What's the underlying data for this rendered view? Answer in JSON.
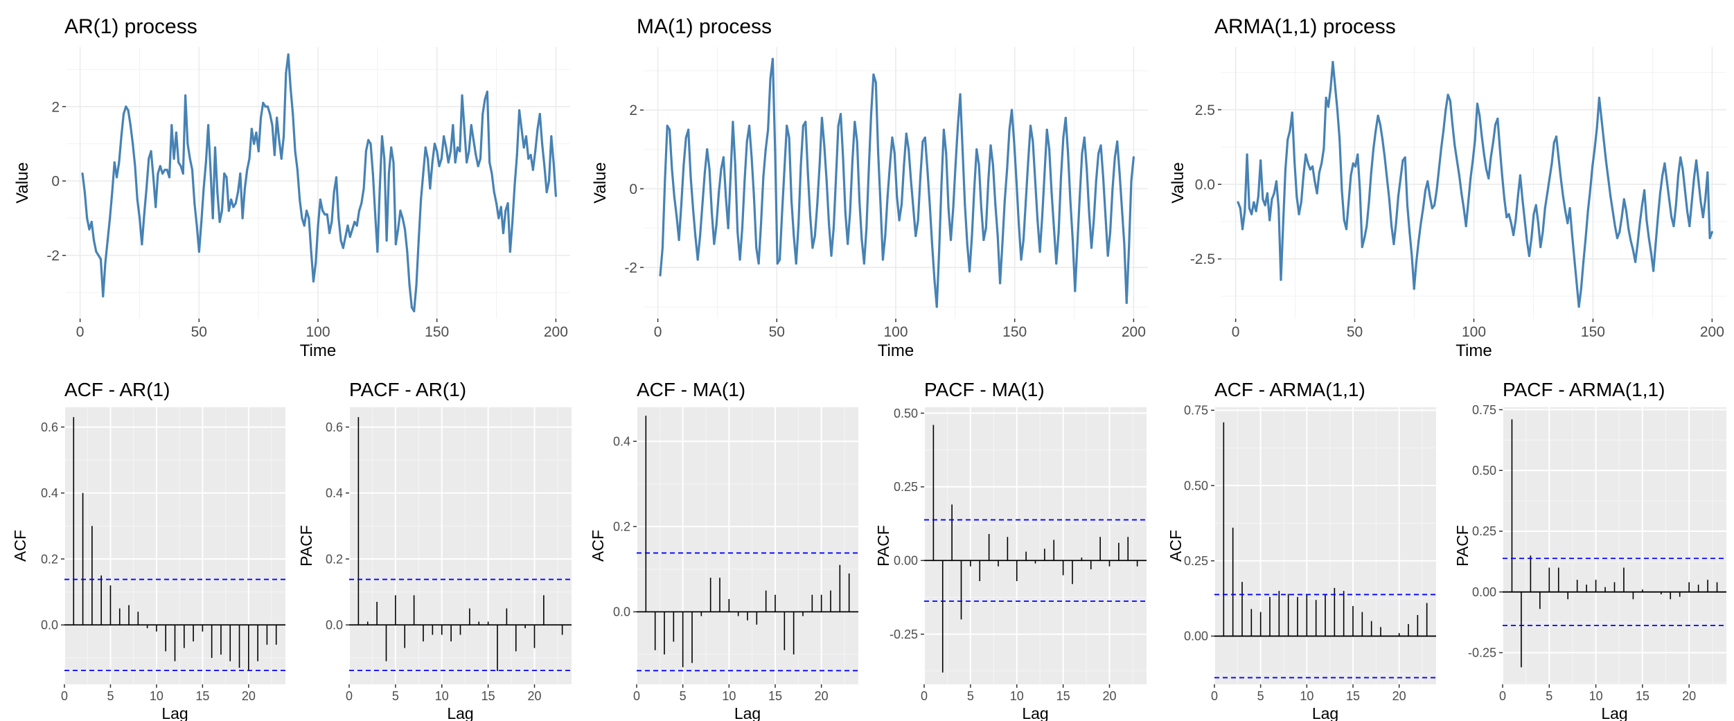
{
  "chart_data": [
    {
      "type": "line",
      "title": "AR(1) process",
      "xlabel": "Time",
      "ylabel": "Value",
      "color": "#4682B4",
      "xlim": [
        -6,
        206
      ],
      "ylim": [
        -3.7,
        3.6
      ],
      "xticks": [
        0,
        50,
        100,
        150,
        200
      ],
      "yticks": [
        -2,
        0,
        2
      ],
      "ytick_labels": [
        "-2",
        "0",
        "2"
      ],
      "grid": true,
      "values": [
        0.2,
        -0.3,
        -1.0,
        -1.3,
        -1.1,
        -1.6,
        -1.9,
        -2.0,
        -2.1,
        -3.1,
        -2.2,
        -1.6,
        -1.0,
        -0.3,
        0.5,
        0.1,
        0.5,
        1.2,
        1.8,
        2.0,
        1.9,
        1.5,
        1.0,
        0.4,
        -0.5,
        -1.0,
        -1.7,
        -0.9,
        -0.2,
        0.6,
        0.8,
        0.1,
        -0.7,
        0.2,
        0.4,
        0.2,
        0.3,
        0.3,
        0.1,
        1.5,
        0.6,
        1.3,
        0.5,
        0.4,
        0.2,
        2.3,
        1.0,
        0.6,
        0.3,
        -0.6,
        -1.2,
        -1.9,
        -1.1,
        -0.2,
        0.5,
        1.5,
        0.3,
        -1.0,
        0.9,
        -0.3,
        -1.1,
        -0.8,
        0.2,
        0.1,
        -0.8,
        -0.5,
        -0.7,
        -0.6,
        -0.3,
        0.2,
        -1.0,
        -0.2,
        0.3,
        0.6,
        1.4,
        1.0,
        1.3,
        0.8,
        1.7,
        2.1,
        2.0,
        2.0,
        1.8,
        1.5,
        0.7,
        1.7,
        1.1,
        0.6,
        1.2,
        2.9,
        3.4,
        2.5,
        1.8,
        0.8,
        0.3,
        -0.5,
        -1.0,
        -1.2,
        -0.8,
        -1.0,
        -1.9,
        -2.7,
        -2.2,
        -1.2,
        -0.5,
        -0.8,
        -0.9,
        -0.9,
        -1.4,
        -1.1,
        -0.3,
        0.1,
        -1.0,
        -1.6,
        -1.8,
        -1.5,
        -1.2,
        -1.5,
        -1.3,
        -1.1,
        -1.2,
        -0.8,
        -0.6,
        -0.2,
        0.8,
        1.1,
        1.0,
        0.2,
        -0.9,
        -1.9,
        -0.2,
        1.2,
        0.6,
        -1.6,
        0.2,
        0.9,
        0.5,
        -1.7,
        -1.3,
        -0.8,
        -1.0,
        -1.3,
        -1.9,
        -2.8,
        -3.4,
        -3.5,
        -2.8,
        -1.6,
        -0.5,
        0.2,
        0.9,
        0.6,
        -0.2,
        0.5,
        1.0,
        0.8,
        0.4,
        0.6,
        1.2,
        0.9,
        0.5,
        0.8,
        1.5,
        0.5,
        0.9,
        0.8,
        2.3,
        1.4,
        0.5,
        0.8,
        1.5,
        1.1,
        0.7,
        0.4,
        0.6,
        1.8,
        2.2,
        2.4,
        0.5,
        0.2,
        -0.3,
        -0.6,
        -1.0,
        -0.7,
        -1.4,
        -0.8,
        -0.6,
        -1.9,
        -1.1,
        -0.1,
        0.7,
        1.9,
        1.4,
        0.9,
        1.2,
        0.6,
        0.7,
        0.3,
        0.8,
        1.4,
        1.8,
        1.0,
        0.4,
        -0.3,
        0.0,
        1.2,
        0.5,
        -0.4
      ]
    },
    {
      "type": "line",
      "title": "MA(1) process",
      "xlabel": "Time",
      "ylabel": "Value",
      "color": "#4682B4",
      "xlim": [
        -6,
        206
      ],
      "ylim": [
        -3.3,
        3.6
      ],
      "xticks": [
        0,
        50,
        100,
        150,
        200
      ],
      "yticks": [
        -2,
        0,
        2
      ],
      "ytick_labels": [
        "-2",
        "0",
        "2"
      ],
      "grid": true,
      "values": [
        -2.2,
        -1.5,
        0.2,
        1.6,
        1.5,
        0.5,
        -0.2,
        -0.7,
        -1.3,
        -0.4,
        0.6,
        1.3,
        1.5,
        0.3,
        -0.5,
        -1.2,
        -1.8,
        -1.2,
        -0.4,
        0.4,
        1.0,
        0.5,
        -0.6,
        -1.4,
        -0.9,
        -0.1,
        0.5,
        0.8,
        -0.2,
        -1.0,
        0.3,
        1.7,
        0.6,
        -1.1,
        -1.8,
        -1.0,
        0.2,
        1.2,
        1.6,
        0.8,
        -0.2,
        -1.5,
        -1.9,
        -0.9,
        0.3,
        1.0,
        1.5,
        2.8,
        3.3,
        1.0,
        -1.9,
        -1.8,
        -0.6,
        0.5,
        1.6,
        1.3,
        -0.3,
        -1.2,
        -1.9,
        -0.9,
        0.6,
        1.6,
        1.7,
        0.4,
        -0.7,
        -1.5,
        -1.2,
        -0.4,
        0.6,
        1.8,
        1.1,
        0.2,
        -0.9,
        -1.7,
        -1.0,
        0.3,
        1.6,
        1.9,
        0.8,
        -0.6,
        -1.4,
        -0.6,
        0.7,
        1.7,
        1.2,
        -0.3,
        -1.3,
        -1.9,
        -1.0,
        0.5,
        1.9,
        2.9,
        2.7,
        0.9,
        -0.4,
        -1.8,
        -1.2,
        -0.2,
        0.6,
        1.3,
        0.9,
        -0.2,
        -0.8,
        -0.4,
        0.6,
        1.4,
        1.0,
        0.2,
        -0.5,
        -1.2,
        -0.8,
        0.3,
        1.2,
        1.3,
        0.5,
        -0.4,
        -1.4,
        -2.3,
        -3.0,
        -1.6,
        0.1,
        1.5,
        0.9,
        -0.5,
        -1.3,
        -0.5,
        0.6,
        1.6,
        2.4,
        1.0,
        -0.4,
        -1.4,
        -2.1,
        -1.2,
        0.0,
        1.0,
        0.6,
        -0.5,
        -1.3,
        -1.0,
        0.2,
        1.1,
        0.6,
        -0.4,
        -1.2,
        -2.4,
        -1.4,
        -0.3,
        0.5,
        1.5,
        2.0,
        1.2,
        0.2,
        -0.9,
        -1.8,
        -1.3,
        -0.3,
        0.7,
        1.6,
        1.2,
        0.2,
        -0.8,
        -1.6,
        -0.7,
        0.4,
        1.5,
        1.0,
        -0.1,
        -1.0,
        -1.9,
        -1.1,
        0.3,
        1.3,
        1.8,
        0.9,
        -0.3,
        -1.3,
        -2.6,
        -1.4,
        -0.2,
        0.9,
        1.3,
        0.5,
        -0.6,
        -1.5,
        -0.8,
        0.2,
        0.9,
        1.1,
        0.3,
        -0.7,
        -1.7,
        -1.1,
        0.0,
        0.8,
        1.2,
        0.4,
        -0.5,
        -1.4,
        -2.9,
        -1.5,
        0.2,
        0.8
      ]
    },
    {
      "type": "line",
      "title": "ARMA(1,1) process",
      "xlabel": "Time",
      "ylabel": "Value",
      "color": "#4682B4",
      "xlim": [
        -6,
        206
      ],
      "ylim": [
        -4.5,
        4.6
      ],
      "xticks": [
        0,
        50,
        100,
        150,
        200
      ],
      "yticks": [
        -2.5,
        0.0,
        2.5
      ],
      "ytick_labels": [
        "-2.5",
        "0.0",
        "2.5"
      ],
      "grid": true,
      "values": [
        -0.6,
        -0.8,
        -1.5,
        -0.9,
        1.0,
        -0.8,
        -1.0,
        -0.6,
        -0.9,
        -0.4,
        0.8,
        -0.5,
        -0.7,
        -0.3,
        -1.2,
        -0.5,
        -0.3,
        0.1,
        -0.8,
        -3.2,
        -1.3,
        0.5,
        1.5,
        1.8,
        2.4,
        0.8,
        -0.4,
        -1.0,
        -0.6,
        0.3,
        1.0,
        0.7,
        0.5,
        0.6,
        0.1,
        -0.3,
        0.4,
        0.7,
        1.2,
        2.9,
        2.6,
        3.2,
        4.1,
        3.3,
        2.5,
        1.5,
        -0.2,
        -1.2,
        -1.5,
        -0.6,
        0.3,
        0.7,
        0.6,
        1.0,
        -0.2,
        -2.1,
        -1.8,
        -1.4,
        -0.6,
        0.4,
        1.2,
        1.8,
        2.3,
        2.0,
        1.5,
        0.9,
        0.2,
        -0.5,
        -1.4,
        -2.0,
        -1.3,
        -0.4,
        0.2,
        0.8,
        0.9,
        -0.7,
        -1.6,
        -2.4,
        -3.5,
        -2.6,
        -1.9,
        -1.3,
        -0.8,
        -0.2,
        0.1,
        -0.4,
        -0.8,
        -0.7,
        -0.2,
        0.5,
        1.2,
        1.8,
        2.5,
        3.0,
        2.8,
        2.0,
        1.3,
        0.8,
        0.3,
        -0.3,
        -0.8,
        -1.4,
        -0.6,
        0.2,
        0.8,
        1.5,
        2.7,
        2.3,
        1.6,
        1.0,
        0.5,
        0.2,
        0.9,
        1.4,
        2.0,
        2.2,
        1.2,
        0.3,
        -0.5,
        -1.1,
        -1.0,
        -1.3,
        -1.7,
        -1.2,
        -0.4,
        0.3,
        -0.5,
        -1.2,
        -1.9,
        -2.4,
        -1.8,
        -1.0,
        -0.7,
        -1.3,
        -2.1,
        -1.6,
        -0.8,
        -0.3,
        0.2,
        0.7,
        1.4,
        1.6,
        0.9,
        0.2,
        -0.4,
        -0.9,
        -1.3,
        -0.8,
        -1.7,
        -2.5,
        -3.3,
        -4.1,
        -3.5,
        -2.6,
        -1.8,
        -0.9,
        -0.2,
        0.6,
        1.2,
        1.9,
        2.9,
        2.2,
        1.5,
        0.8,
        0.2,
        -0.4,
        -0.9,
        -1.4,
        -1.8,
        -1.6,
        -1.1,
        -0.5,
        -0.9,
        -1.5,
        -1.9,
        -2.2,
        -2.6,
        -2.0,
        -1.3,
        -0.7,
        -0.2,
        -1.2,
        -1.8,
        -2.3,
        -2.9,
        -2.0,
        -1.1,
        -0.3,
        0.3,
        0.7,
        0.1,
        -0.5,
        -1.1,
        -1.4,
        -0.7,
        0.3,
        0.9,
        0.5,
        -0.2,
        -0.9,
        -1.4,
        -0.6,
        0.2,
        0.8,
        0.1,
        -0.6,
        -1.1,
        -0.5,
        0.4,
        -1.8,
        -1.6
      ]
    },
    {
      "type": "bar",
      "title": "ACF - AR(1)",
      "xlabel": "Lag",
      "ylabel": "ACF",
      "xlim": [
        0,
        24
      ],
      "ylim": [
        -0.18,
        0.66
      ],
      "xticks": [
        0,
        5,
        10,
        15,
        20
      ],
      "yticks": [
        0.0,
        0.2,
        0.4,
        0.6
      ],
      "ytick_labels": [
        "0.0",
        "0.2",
        "0.4",
        "0.6"
      ],
      "confidence_bound": 0.138,
      "lags": [
        1,
        2,
        3,
        4,
        5,
        6,
        7,
        8,
        9,
        10,
        11,
        12,
        13,
        14,
        15,
        16,
        17,
        18,
        19,
        20,
        21,
        22,
        23
      ],
      "values": [
        0.63,
        0.4,
        0.3,
        0.15,
        0.12,
        0.05,
        0.06,
        0.04,
        -0.01,
        -0.02,
        -0.08,
        -0.11,
        -0.07,
        -0.05,
        -0.02,
        -0.1,
        -0.09,
        -0.11,
        -0.13,
        -0.14,
        -0.11,
        -0.06,
        -0.06
      ]
    },
    {
      "type": "bar",
      "title": "PACF - AR(1)",
      "xlabel": "Lag",
      "ylabel": "PACF",
      "xlim": [
        0,
        24
      ],
      "ylim": [
        -0.18,
        0.66
      ],
      "xticks": [
        0,
        5,
        10,
        15,
        20
      ],
      "yticks": [
        0.0,
        0.2,
        0.4,
        0.6
      ],
      "ytick_labels": [
        "0.0",
        "0.2",
        "0.4",
        "0.6"
      ],
      "confidence_bound": 0.138,
      "lags": [
        1,
        2,
        3,
        4,
        5,
        6,
        7,
        8,
        9,
        10,
        11,
        12,
        13,
        14,
        15,
        16,
        17,
        18,
        19,
        20,
        21,
        22,
        23
      ],
      "values": [
        0.63,
        0.01,
        0.07,
        -0.11,
        0.09,
        -0.07,
        0.09,
        -0.05,
        -0.03,
        -0.03,
        -0.05,
        -0.03,
        0.05,
        0.01,
        0.01,
        -0.14,
        0.05,
        -0.08,
        -0.01,
        -0.07,
        0.09,
        0.0,
        -0.03
      ]
    },
    {
      "type": "bar",
      "title": "ACF - MA(1)",
      "xlabel": "Lag",
      "ylabel": "ACF",
      "xlim": [
        0,
        24
      ],
      "ylim": [
        -0.17,
        0.48
      ],
      "xticks": [
        0,
        5,
        10,
        15,
        20
      ],
      "yticks": [
        0.0,
        0.2,
        0.4
      ],
      "ytick_labels": [
        "0.0",
        "0.2",
        "0.4"
      ],
      "confidence_bound": 0.138,
      "lags": [
        1,
        2,
        3,
        4,
        5,
        6,
        7,
        8,
        9,
        10,
        11,
        12,
        13,
        14,
        15,
        16,
        17,
        18,
        19,
        20,
        21,
        22,
        23
      ],
      "values": [
        0.46,
        -0.09,
        -0.1,
        -0.07,
        -0.13,
        -0.12,
        -0.01,
        0.08,
        0.08,
        0.03,
        -0.01,
        -0.02,
        -0.03,
        0.05,
        0.04,
        -0.09,
        -0.1,
        -0.01,
        0.04,
        0.04,
        0.05,
        0.11,
        0.09
      ]
    },
    {
      "type": "bar",
      "title": "PACF - MA(1)",
      "xlabel": "Lag",
      "ylabel": "PACF",
      "xlim": [
        0,
        24
      ],
      "ylim": [
        -0.42,
        0.52
      ],
      "xticks": [
        0,
        5,
        10,
        15,
        20
      ],
      "yticks": [
        -0.25,
        0.0,
        0.25,
        0.5
      ],
      "ytick_labels": [
        "-0.25",
        "0.00",
        "0.25",
        "0.50"
      ],
      "confidence_bound": 0.138,
      "lags": [
        1,
        2,
        3,
        4,
        5,
        6,
        7,
        8,
        9,
        10,
        11,
        12,
        13,
        14,
        15,
        16,
        17,
        18,
        19,
        20,
        21,
        22,
        23
      ],
      "values": [
        0.46,
        -0.38,
        0.19,
        -0.2,
        -0.02,
        -0.07,
        0.09,
        -0.02,
        0.08,
        -0.07,
        0.03,
        -0.01,
        0.04,
        0.07,
        -0.05,
        -0.08,
        0.01,
        -0.03,
        0.08,
        -0.02,
        0.06,
        0.08,
        -0.02
      ]
    },
    {
      "type": "bar",
      "title": "ACF - ARMA(1,1)",
      "xlabel": "Lag",
      "ylabel": "ACF",
      "xlim": [
        0,
        24
      ],
      "ylim": [
        -0.16,
        0.76
      ],
      "xticks": [
        0,
        5,
        10,
        15,
        20
      ],
      "yticks": [
        0.0,
        0.25,
        0.5,
        0.75
      ],
      "ytick_labels": [
        "0.00",
        "0.25",
        "0.50",
        "0.75"
      ],
      "confidence_bound": 0.138,
      "lags": [
        1,
        2,
        3,
        4,
        5,
        6,
        7,
        8,
        9,
        10,
        11,
        12,
        13,
        14,
        15,
        16,
        17,
        18,
        19,
        20,
        21,
        22,
        23
      ],
      "values": [
        0.71,
        0.36,
        0.18,
        0.09,
        0.08,
        0.13,
        0.15,
        0.14,
        0.13,
        0.14,
        0.12,
        0.14,
        0.16,
        0.15,
        0.1,
        0.08,
        0.05,
        0.03,
        0.0,
        0.01,
        0.04,
        0.07,
        0.11
      ]
    },
    {
      "type": "bar",
      "title": "PACF - ARMA(1,1)",
      "xlabel": "Lag",
      "ylabel": "PACF",
      "xlim": [
        0,
        24
      ],
      "ylim": [
        -0.38,
        0.76
      ],
      "xticks": [
        0,
        5,
        10,
        15,
        20
      ],
      "yticks": [
        -0.25,
        0.0,
        0.25,
        0.5,
        0.75
      ],
      "ytick_labels": [
        "-0.25",
        "0.00",
        "0.25",
        "0.50",
        "0.75"
      ],
      "confidence_bound": 0.138,
      "lags": [
        1,
        2,
        3,
        4,
        5,
        6,
        7,
        8,
        9,
        10,
        11,
        12,
        13,
        14,
        15,
        16,
        17,
        18,
        19,
        20,
        21,
        22,
        23
      ],
      "values": [
        0.71,
        -0.31,
        0.15,
        -0.07,
        0.1,
        0.1,
        -0.03,
        0.05,
        0.03,
        0.05,
        0.02,
        0.04,
        0.1,
        -0.03,
        0.01,
        0.0,
        -0.01,
        -0.03,
        -0.02,
        0.04,
        0.03,
        0.05,
        0.04
      ]
    }
  ]
}
